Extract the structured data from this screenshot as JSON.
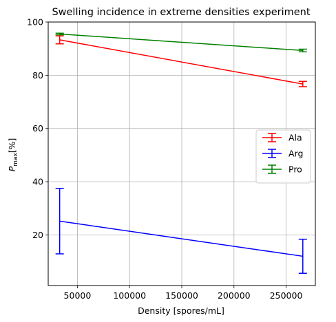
{
  "chart_data": {
    "type": "line",
    "title": "Swelling incidence in extreme densities experiment",
    "xlabel": "Density [spores/mL]",
    "ylabel": {
      "main": "P",
      "sub": "max",
      "suffix": "[%]"
    },
    "xlim": [
      22000,
      278000
    ],
    "ylim": [
      1,
      100
    ],
    "xticks": [
      50000,
      100000,
      150000,
      200000,
      250000
    ],
    "xtick_labels": [
      "50000",
      "100000",
      "150000",
      "200000",
      "250000"
    ],
    "yticks": [
      20,
      40,
      60,
      80,
      100
    ],
    "ytick_labels": [
      "20",
      "40",
      "60",
      "80",
      "100"
    ],
    "grid": true,
    "legend_position": "center-right",
    "x": [
      33000,
      266000
    ],
    "series": [
      {
        "name": "Ala",
        "color": "#ff0000",
        "values": [
          93.3,
          76.7
        ],
        "errors": [
          1.5,
          1.0
        ]
      },
      {
        "name": "Arg",
        "color": "#0000ff",
        "values": [
          25.2,
          12.0
        ],
        "errors": [
          12.3,
          6.4
        ]
      },
      {
        "name": "Pro",
        "color": "#008000",
        "values": [
          95.5,
          89.3
        ],
        "errors": [
          0.3,
          0.5
        ]
      }
    ]
  }
}
